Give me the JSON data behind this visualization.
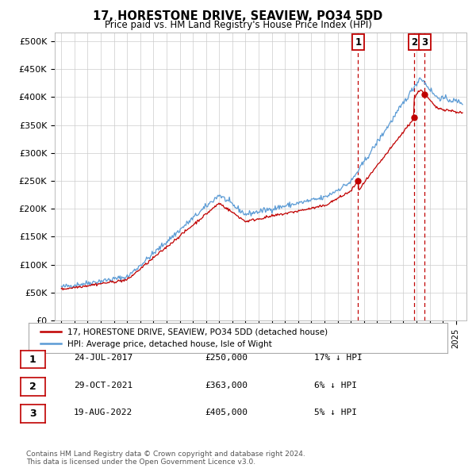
{
  "title": "17, HORESTONE DRIVE, SEAVIEW, PO34 5DD",
  "subtitle": "Price paid vs. HM Land Registry's House Price Index (HPI)",
  "ylabel_ticks": [
    "£0",
    "£50K",
    "£100K",
    "£150K",
    "£200K",
    "£250K",
    "£300K",
    "£350K",
    "£400K",
    "£450K",
    "£500K"
  ],
  "ytick_vals": [
    0,
    50000,
    100000,
    150000,
    200000,
    250000,
    300000,
    350000,
    400000,
    450000,
    500000
  ],
  "ylim": [
    0,
    515000
  ],
  "xlim_start": 1994.5,
  "xlim_end": 2025.8,
  "hpi_color": "#5b9bd5",
  "price_color": "#c00000",
  "dashed_line_color": "#c00000",
  "legend_label_red": "17, HORESTONE DRIVE, SEAVIEW, PO34 5DD (detached house)",
  "legend_label_blue": "HPI: Average price, detached house, Isle of Wight",
  "transactions": [
    {
      "num": 1,
      "date_dec": 2017.56,
      "price": 250000,
      "label": "1"
    },
    {
      "num": 2,
      "date_dec": 2021.83,
      "price": 363000,
      "label": "2"
    },
    {
      "num": 3,
      "date_dec": 2022.63,
      "price": 405000,
      "label": "3"
    }
  ],
  "footnote": "Contains HM Land Registry data © Crown copyright and database right 2024.\nThis data is licensed under the Open Government Licence v3.0.",
  "table_rows": [
    [
      "1",
      "24-JUL-2017",
      "£250,000",
      "17% ↓ HPI"
    ],
    [
      "2",
      "29-OCT-2021",
      "£363,000",
      "6% ↓ HPI"
    ],
    [
      "3",
      "19-AUG-2022",
      "£405,000",
      "5% ↓ HPI"
    ]
  ]
}
